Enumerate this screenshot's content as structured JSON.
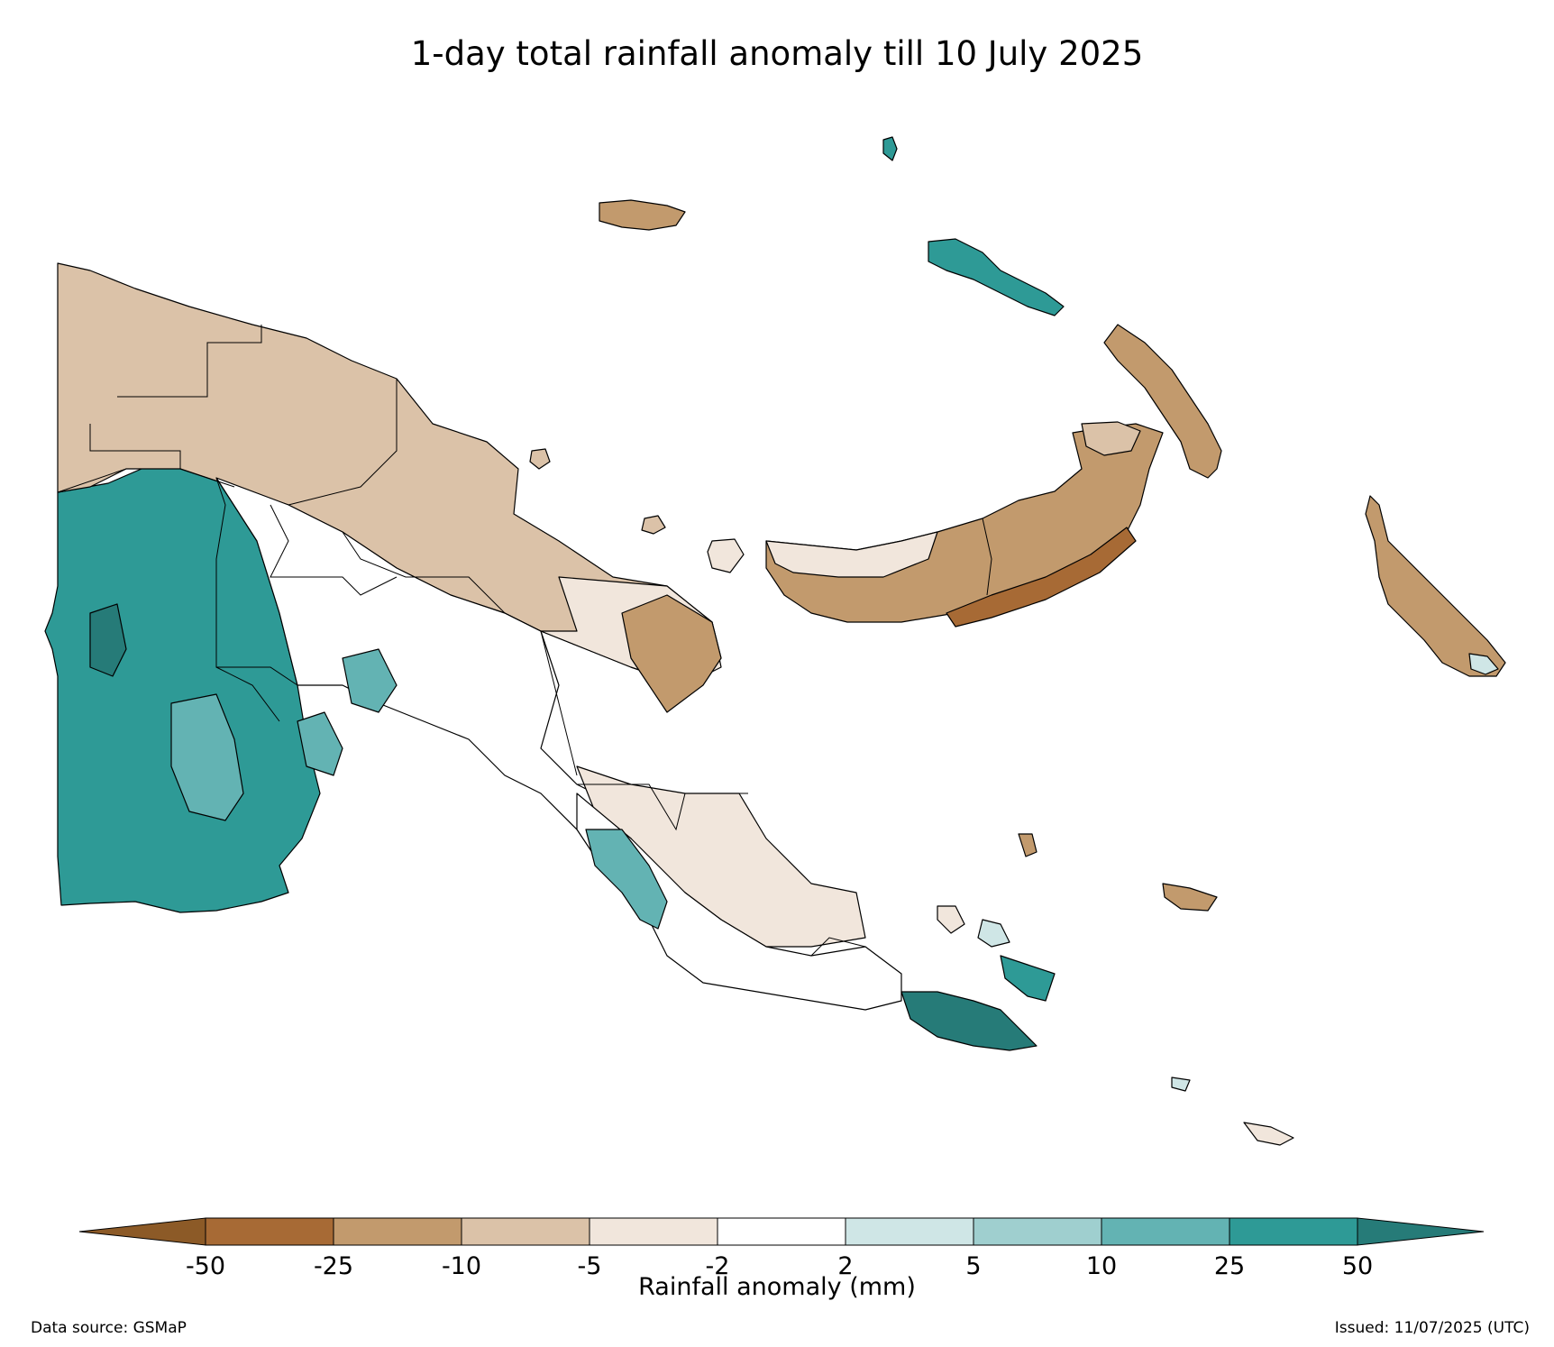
{
  "title": "1-day total rainfall anomaly till 10 July 2025",
  "colorbar": {
    "label": "Rainfall anomaly (mm)",
    "ticks": [
      "-50",
      "-25",
      "-10",
      "-5",
      "-2",
      "2",
      "5",
      "10",
      "25",
      "50"
    ],
    "colors": [
      "#a76a35",
      "#c29a6d",
      "#dbc2a8",
      "#f1e6dc",
      "#ffffff",
      "#cfe6e6",
      "#9fcfcf",
      "#63b3b3",
      "#2e9a96"
    ],
    "extend_low_color": "#8c5a27",
    "extend_high_color": "#267b78"
  },
  "legend": {
    "very_dry": "#a76a35",
    "dry": "#c29a6d",
    "slightly_dry": "#dbc2a8",
    "near_dry": "#f1e6dc",
    "normal": "#ffffff",
    "near_wet": "#cfe6e6",
    "slightly_wet": "#9fcfcf",
    "wet": "#63b3b3",
    "very_wet": "#2e9a96",
    "extreme_wet": "#267b78"
  },
  "footer": {
    "source": "Data source: GSMaP",
    "issued": "Issued: 11/07/2025 (UTC)"
  }
}
